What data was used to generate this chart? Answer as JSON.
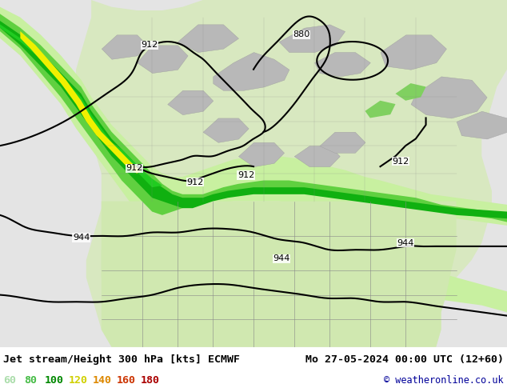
{
  "title_left": "Jet stream/Height 300 hPa [kts] ECMWF",
  "title_right": "Mo 27-05-2024 00:00 UTC (12+60)",
  "copyright": "© weatheronline.co.uk",
  "legend_values": [
    60,
    80,
    100,
    120,
    140,
    160,
    180
  ],
  "legend_text_colors": [
    "#aaddaa",
    "#44bb44",
    "#008800",
    "#c8c800",
    "#e08800",
    "#cc4400",
    "#aa0000"
  ],
  "figsize": [
    6.34,
    4.9
  ],
  "dpi": 100,
  "bg_color": "#e0e0e0",
  "land_color": "#c8c8c8",
  "us_land_color": "#d4e8b0",
  "canada_land_color": "#c8c8c8",
  "water_color": "#e8e8e8",
  "jet_colors": {
    "60": "#d0f0b0",
    "80": "#a0e060",
    "100": "#30b030",
    "120": "#e0e000",
    "140": "#e08800",
    "160": "#cc3300",
    "180": "#990000"
  }
}
